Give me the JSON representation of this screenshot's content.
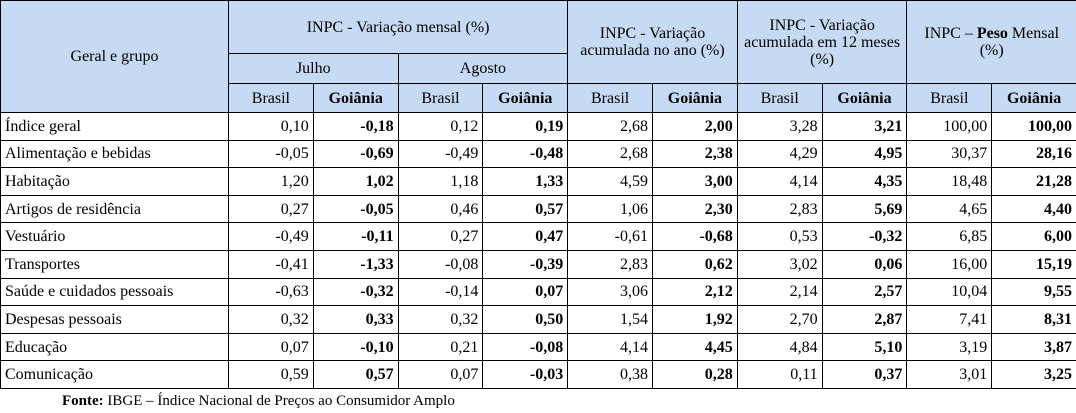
{
  "table": {
    "corner": "Geral e grupo",
    "groups": [
      "INPC - Variação mensal (%)",
      "INPC - Variação acumulada no ano (%)",
      "INPC - Variação acumulada em 12 meses (%)"
    ],
    "peso_header": [
      "INPC – ",
      "Peso",
      " Mensal (%)"
    ],
    "months": [
      "Julho",
      "Agosto"
    ],
    "columns": [
      "Brasil",
      "Goiânia",
      "Brasil",
      "Goiânia",
      "Brasil",
      "Goiânia",
      "Brasil",
      "Goiânia",
      "Brasil",
      "Goiânia"
    ],
    "rows": [
      {
        "label": "Índice geral",
        "values": [
          "0,10",
          "-0,18",
          "0,12",
          "0,19",
          "2,68",
          "2,00",
          "3,28",
          "3,21",
          "100,00",
          "100,00"
        ]
      },
      {
        "label": "Alimentação e bebidas",
        "values": [
          "-0,05",
          "-0,69",
          "-0,49",
          "-0,48",
          "2,68",
          "2,38",
          "4,29",
          "4,95",
          "30,37",
          "28,16"
        ]
      },
      {
        "label": "Habitação",
        "values": [
          "1,20",
          "1,02",
          "1,18",
          "1,33",
          "4,59",
          "3,00",
          "4,14",
          "4,35",
          "18,48",
          "21,28"
        ]
      },
      {
        "label": "Artigos de residência",
        "values": [
          "0,27",
          "-0,05",
          "0,46",
          "0,57",
          "1,06",
          "2,30",
          "2,83",
          "5,69",
          "4,65",
          "4,40"
        ]
      },
      {
        "label": "Vestuário",
        "values": [
          "-0,49",
          "-0,11",
          "0,27",
          "0,47",
          "-0,61",
          "-0,68",
          "0,53",
          "-0,32",
          "6,85",
          "6,00"
        ]
      },
      {
        "label": "Transportes",
        "values": [
          "-0,41",
          "-1,33",
          "-0,08",
          "-0,39",
          "2,83",
          "0,62",
          "3,02",
          "0,06",
          "16,00",
          "15,19"
        ]
      },
      {
        "label": "Saúde e cuidados pessoais",
        "values": [
          "-0,63",
          "-0,32",
          "-0,14",
          "0,07",
          "3,06",
          "2,12",
          "2,14",
          "2,57",
          "10,04",
          "9,55"
        ]
      },
      {
        "label": "Despesas pessoais",
        "values": [
          "0,32",
          "0,33",
          "0,32",
          "0,50",
          "1,54",
          "1,92",
          "2,70",
          "2,87",
          "7,41",
          "8,31"
        ]
      },
      {
        "label": "Educação",
        "values": [
          "0,07",
          "-0,10",
          "0,21",
          "-0,08",
          "4,14",
          "4,45",
          "4,84",
          "5,10",
          "3,19",
          "3,87"
        ]
      },
      {
        "label": "Comunicação",
        "values": [
          "0,59",
          "0,57",
          "0,07",
          "-0,03",
          "0,38",
          "0,28",
          "0,11",
          "0,37",
          "3,01",
          "3,25"
        ]
      }
    ]
  },
  "footer": {
    "label": "Fonte:",
    "text": " IBGE – Índice Nacional de Preços ao Consumidor Amplo"
  }
}
